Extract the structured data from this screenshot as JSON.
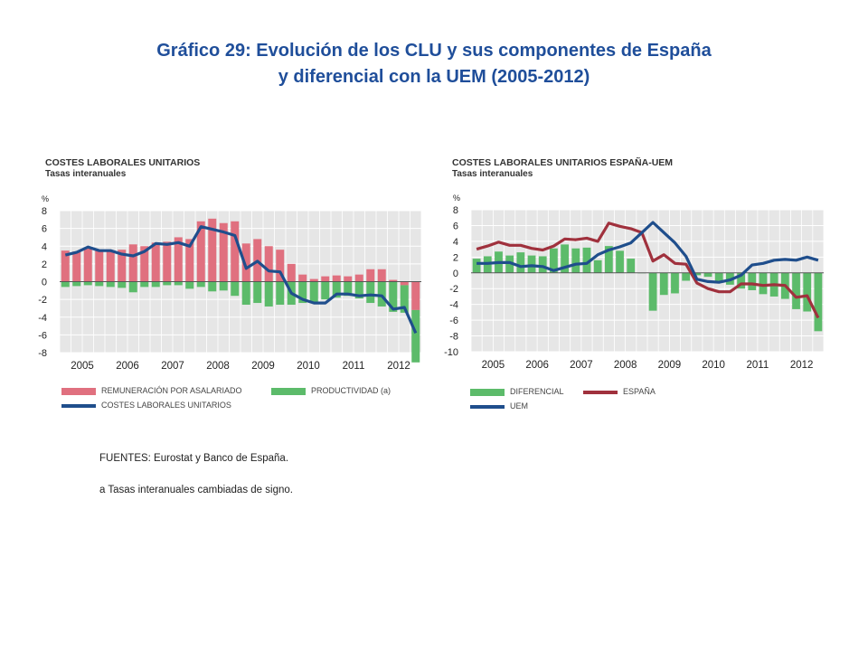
{
  "title": {
    "line1": "Gráfico 29: Evolución de los CLU y sus componentes de España",
    "line2": "y diferencial con la UEM (2005-2012)"
  },
  "left": {
    "heading": "COSTES LABORALES UNITARIOS",
    "subheading": "Tasas interanuales",
    "legend": {
      "remuneracion": "REMUNERACIÓN POR ASALARIADO",
      "productividad": "PRODUCTIVIDAD (a)",
      "clu": "COSTES LABORALES UNITARIOS"
    }
  },
  "right": {
    "heading": "COSTES LABORALES UNITARIOS ESPAÑA-UEM",
    "subheading": "Tasas interanuales",
    "legend": {
      "diferencial": "DIFERENCIAL",
      "espana": "ESPAÑA",
      "uem": "UEM"
    }
  },
  "colors": {
    "remuneracion": "#e0707f",
    "productividad": "#5cbb6a",
    "clu": "#1f4e8c",
    "diferencial": "#5cbb6a",
    "espana": "#a0313d",
    "uem": "#1f4e8c",
    "plotbg": "#e6e6e6",
    "grid": "#ffffff",
    "title": "#1f4e9a"
  },
  "chart_data": [
    {
      "type": "bar",
      "title": "COSTES LABORALES UNITARIOS",
      "subtitle": "Tasas interanuales",
      "ylabel": "%",
      "ylim": [
        -8,
        8
      ],
      "yticks": [
        8,
        6,
        4,
        2,
        0,
        -2,
        -4,
        -6,
        -8
      ],
      "x_year_labels": [
        "2005",
        "2006",
        "2007",
        "2008",
        "2009",
        "2010",
        "2011",
        "2012"
      ],
      "x_start": 2005,
      "periods": 32,
      "series": [
        {
          "name": "REMUNERACIÓN POR ASALARIADO",
          "kind": "bar",
          "values": [
            3.5,
            3.4,
            3.8,
            3.6,
            3.4,
            3.6,
            4.2,
            4.0,
            4.4,
            4.5,
            5.0,
            4.8,
            6.8,
            7.1,
            6.6,
            6.8,
            4.3,
            4.8,
            4.0,
            3.6,
            2.0,
            0.8,
            0.3,
            0.6,
            0.7,
            0.6,
            0.8,
            1.4,
            1.4,
            0.2,
            -0.4,
            -3.2
          ]
        },
        {
          "name": "PRODUCTIVIDAD (a)",
          "kind": "bar",
          "values": [
            -0.6,
            -0.5,
            -0.4,
            -0.5,
            -0.6,
            -0.7,
            -1.2,
            -0.6,
            -0.6,
            -0.4,
            -0.4,
            -0.8,
            -0.6,
            -1.1,
            -1.0,
            -1.6,
            -2.6,
            -2.4,
            -2.8,
            -2.6,
            -2.6,
            -2.4,
            -2.3,
            -2.0,
            -1.8,
            -1.6,
            -1.9,
            -2.4,
            -2.8,
            -3.4,
            -3.1,
            -5.9
          ]
        },
        {
          "name": "COSTES LABORALES UNITARIOS",
          "kind": "line",
          "values": [
            3.0,
            3.3,
            3.9,
            3.5,
            3.5,
            3.1,
            2.9,
            3.4,
            4.3,
            4.2,
            4.4,
            4.0,
            6.2,
            5.9,
            5.6,
            5.2,
            1.5,
            2.3,
            1.2,
            1.1,
            -1.3,
            -2.0,
            -2.4,
            -2.4,
            -1.4,
            -1.4,
            -1.6,
            -1.5,
            -1.6,
            -3.1,
            -2.9,
            -5.8
          ]
        }
      ]
    },
    {
      "type": "bar",
      "title": "COSTES LABORALES UNITARIOS ESPAÑA-UEM",
      "subtitle": "Tasas interanuales",
      "ylabel": "%",
      "ylim": [
        -10,
        8
      ],
      "yticks": [
        8,
        6,
        4,
        2,
        0,
        -2,
        -4,
        -6,
        -8,
        -10
      ],
      "x_year_labels": [
        "2005",
        "2006",
        "2007",
        "2008",
        "2009",
        "2010",
        "2011",
        "2012"
      ],
      "x_start": 2005,
      "periods": 32,
      "series": [
        {
          "name": "DIFERENCIAL",
          "kind": "bar",
          "values": [
            1.8,
            2.1,
            2.7,
            2.2,
            2.6,
            2.2,
            2.1,
            3.1,
            3.6,
            3.1,
            3.2,
            1.6,
            3.4,
            2.8,
            1.8,
            0.0,
            -4.8,
            -2.8,
            -2.6,
            -1.0,
            -0.3,
            -0.5,
            -1.0,
            -1.5,
            -2.0,
            -2.2,
            -2.7,
            -3.0,
            -3.3,
            -4.6,
            -4.9,
            -7.4
          ]
        },
        {
          "name": "ESPAÑA",
          "kind": "line",
          "values": [
            3.0,
            3.4,
            3.9,
            3.5,
            3.5,
            3.1,
            2.9,
            3.4,
            4.3,
            4.2,
            4.4,
            4.0,
            6.3,
            5.9,
            5.6,
            5.1,
            1.5,
            2.3,
            1.2,
            1.1,
            -1.3,
            -2.0,
            -2.4,
            -2.4,
            -1.4,
            -1.4,
            -1.6,
            -1.5,
            -1.6,
            -3.1,
            -2.9,
            -5.7
          ]
        },
        {
          "name": "UEM",
          "kind": "line",
          "values": [
            1.2,
            1.2,
            1.3,
            1.3,
            0.8,
            0.9,
            0.8,
            0.3,
            0.7,
            1.1,
            1.2,
            2.3,
            2.9,
            3.3,
            3.8,
            5.1,
            6.4,
            5.1,
            3.8,
            2.1,
            -0.8,
            -1.1,
            -1.2,
            -0.9,
            -0.3,
            1.0,
            1.2,
            1.6,
            1.7,
            1.6,
            2.0,
            1.6
          ]
        }
      ]
    }
  ],
  "footer": {
    "sources": "FUENTES: Eurostat y Banco de España.",
    "note": "a  Tasas interanuales cambiadas de signo."
  }
}
